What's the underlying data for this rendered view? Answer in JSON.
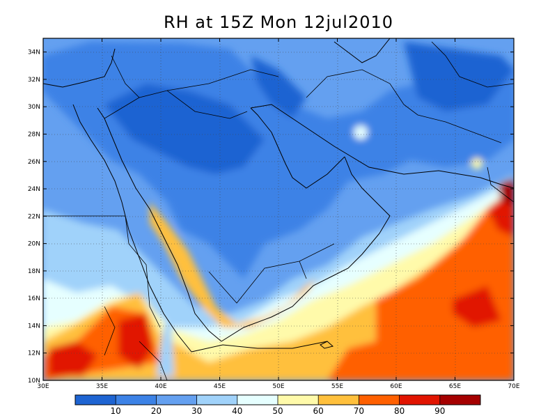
{
  "title": "RH at 15Z Mon 12jul2010",
  "map": {
    "lon_range": [
      30,
      70
    ],
    "lat_range": [
      10,
      35
    ],
    "lon_ticks": [
      "30E",
      "35E",
      "40E",
      "45E",
      "50E",
      "55E",
      "60E",
      "65E",
      "70E"
    ],
    "lat_ticks": [
      "10N",
      "12N",
      "14N",
      "16N",
      "18N",
      "20N",
      "22N",
      "24N",
      "26N",
      "28N",
      "30N",
      "32N",
      "34N"
    ]
  },
  "colorbar": {
    "labels": [
      "10",
      "20",
      "30",
      "40",
      "50",
      "60",
      "70",
      "80",
      "90"
    ],
    "colors": [
      "#1e64d2",
      "#3c82e6",
      "#64a0f0",
      "#a0d2fa",
      "#e6ffff",
      "#fffaaa",
      "#ffc03c",
      "#ff6000",
      "#e11400",
      "#a50000"
    ]
  }
}
